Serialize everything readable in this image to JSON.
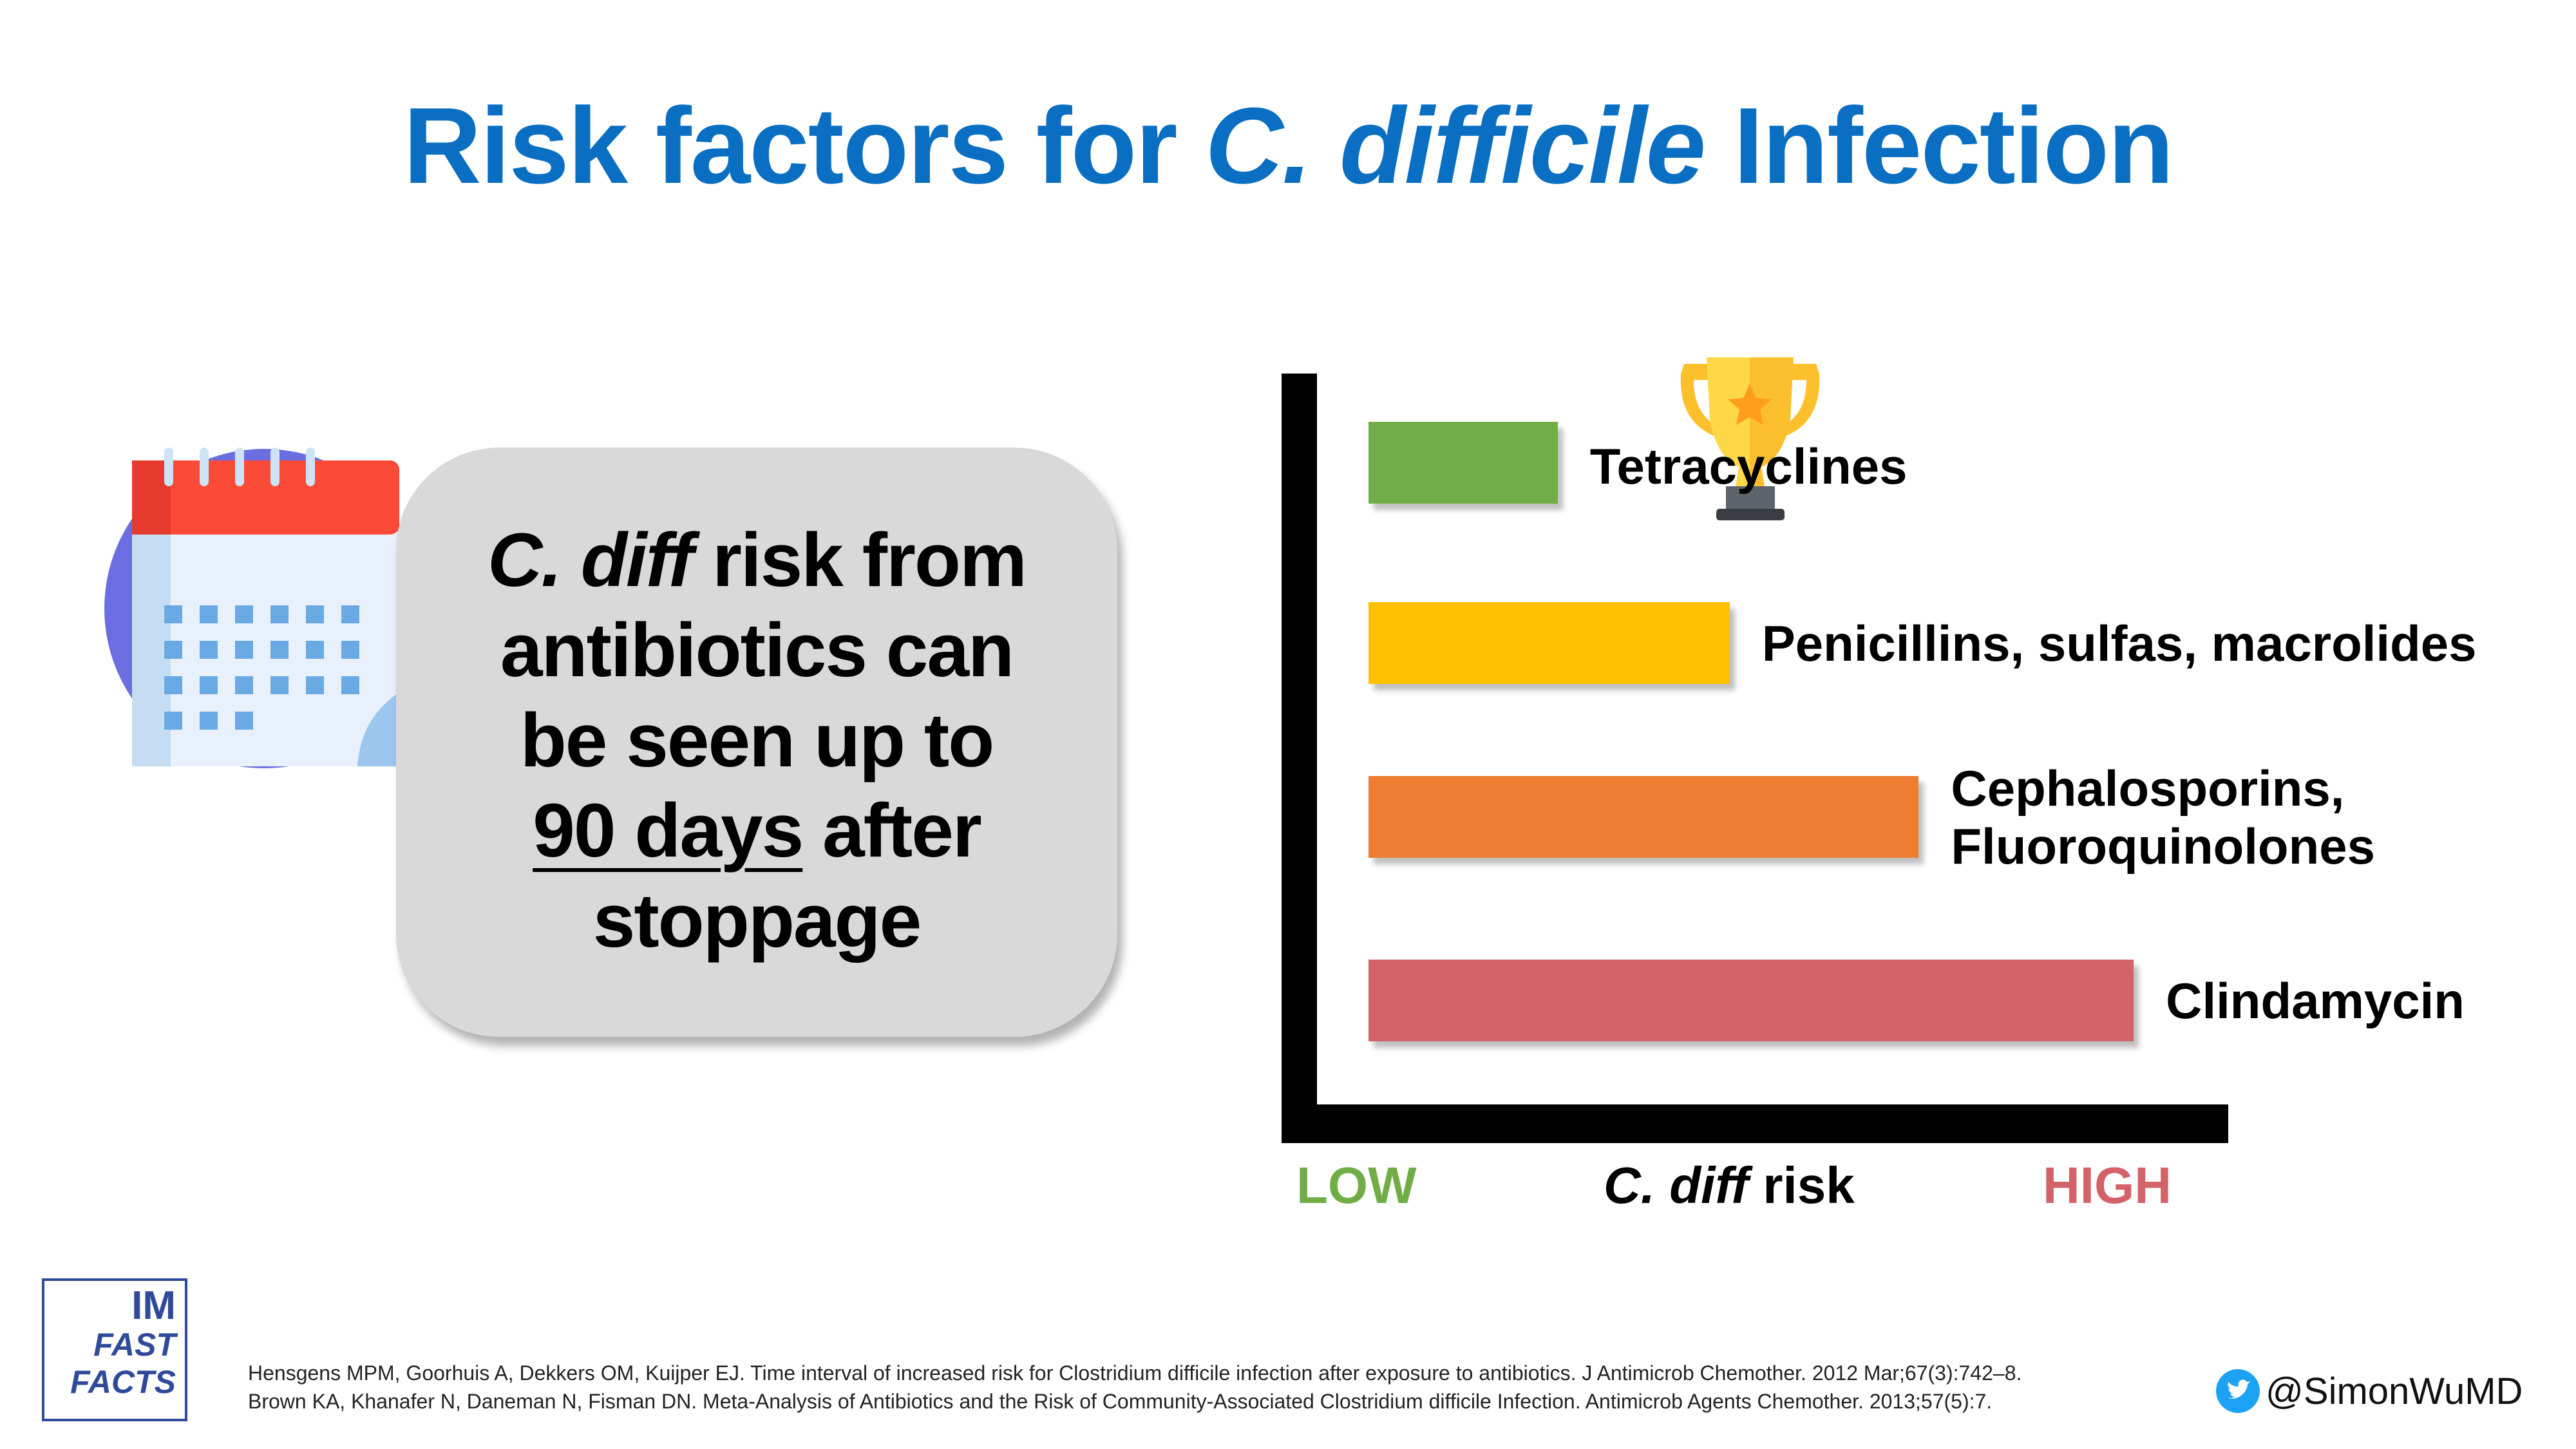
{
  "title": {
    "prefix": "Risk factors for ",
    "organism_genus": "C.",
    "organism_species": "difficile",
    "suffix": " Infection"
  },
  "callout": {
    "italic": "C. diff",
    "line1_rest": " risk from",
    "line2": "antibiotics can",
    "line3": "be seen up to",
    "line4_underlined": "90 days",
    "line4_rest": " after",
    "line5": "stoppage"
  },
  "icons": {
    "calendar": "calendar-icon",
    "trophy": "trophy-icon",
    "twitter": "twitter-bird-icon"
  },
  "chart_data": {
    "type": "bar",
    "orientation": "horizontal",
    "categories": [
      "Tetracyclines",
      "Penicillins, sulfas, macrolides",
      "Cephalosporins, Fluoroquinolones",
      "Clindamycin"
    ],
    "category_lines": [
      [
        "Tetracyclines"
      ],
      [
        "Penicillins, sulfas, macrolides"
      ],
      [
        "Cephalosporins,",
        "Fluoroquinolones"
      ],
      [
        "Clindamycin"
      ]
    ],
    "values": [
      0.22,
      0.42,
      0.64,
      0.89
    ],
    "colors": [
      "#70ad47",
      "#ffc000",
      "#ed7d31",
      "#d46369"
    ],
    "xlim": [
      0,
      1
    ],
    "xlabel": {
      "italic": "C. diff",
      "rest": " risk"
    },
    "x_low_label": "LOW",
    "x_high_label": "HIGH",
    "low_color": "#70ad47",
    "high_color": "#d46369",
    "grid": false,
    "annotation": "trophy next to Tetracyclines"
  },
  "citations": [
    "Hensgens MPM, Goorhuis A, Dekkers OM, Kuijper EJ. Time interval of increased risk for Clostridium difficile infection after exposure to antibiotics. J Antimicrob Chemother. 2012 Mar;67(3):742–8.",
    "Brown KA, Khanafer N, Daneman N, Fisman DN. Meta-Analysis of Antibiotics and the Risk of Community-Associated Clostridium difficile Infection. Antimicrob Agents Chemother. 2013;57(5):7."
  ],
  "logo": {
    "line1": "IM",
    "line2": "FAST",
    "line3": "FACTS"
  },
  "twitter_handle": "@SimonWuMD"
}
